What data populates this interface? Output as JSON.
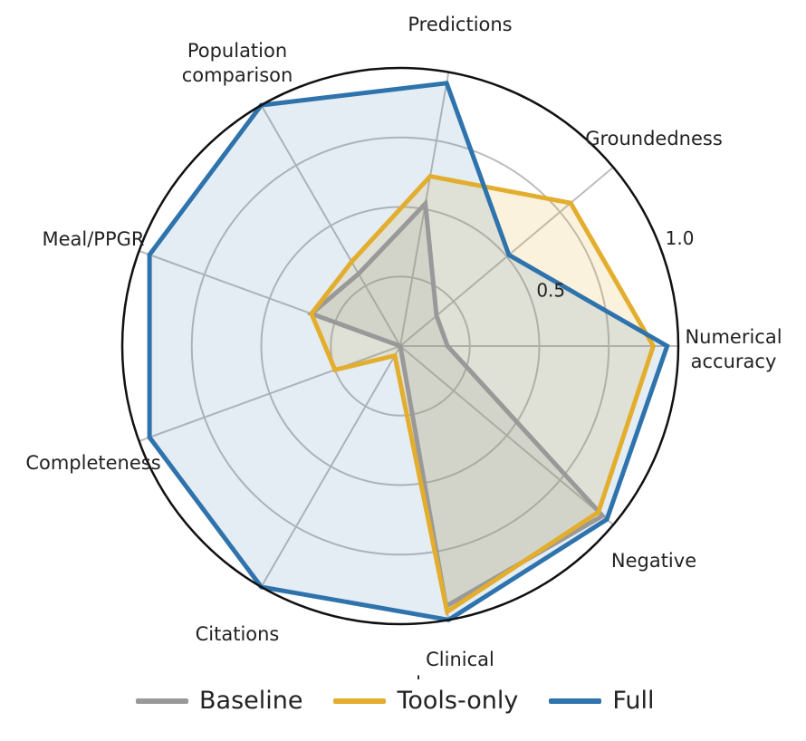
{
  "chart_data": {
    "type": "radar",
    "axes": [
      "Numerical accuracy",
      "Groundedness",
      "Predictions",
      "Population comparison",
      "Meal/PPGR",
      "Completeness",
      "Citations",
      "Clinical language",
      "Negative"
    ],
    "radial_ticks": [
      "0.5",
      "1.0"
    ],
    "rlim": [
      0,
      1
    ],
    "grid": true,
    "legend_position": "bottom",
    "series": [
      {
        "name": "Baseline",
        "color": "#999999",
        "values": [
          0.17,
          0.17,
          0.52,
          0.3,
          0.34,
          0.0,
          0.0,
          0.95,
          0.95
        ]
      },
      {
        "name": "Tools-only",
        "color": "#e3ad2d",
        "values": [
          0.91,
          0.8,
          0.62,
          0.35,
          0.34,
          0.25,
          0.04,
          0.97,
          0.93
        ]
      },
      {
        "name": "Full",
        "color": "#2f73ad",
        "values": [
          0.96,
          0.51,
          0.96,
          1.0,
          0.96,
          0.96,
          1.0,
          1.0,
          0.97
        ]
      }
    ]
  }
}
